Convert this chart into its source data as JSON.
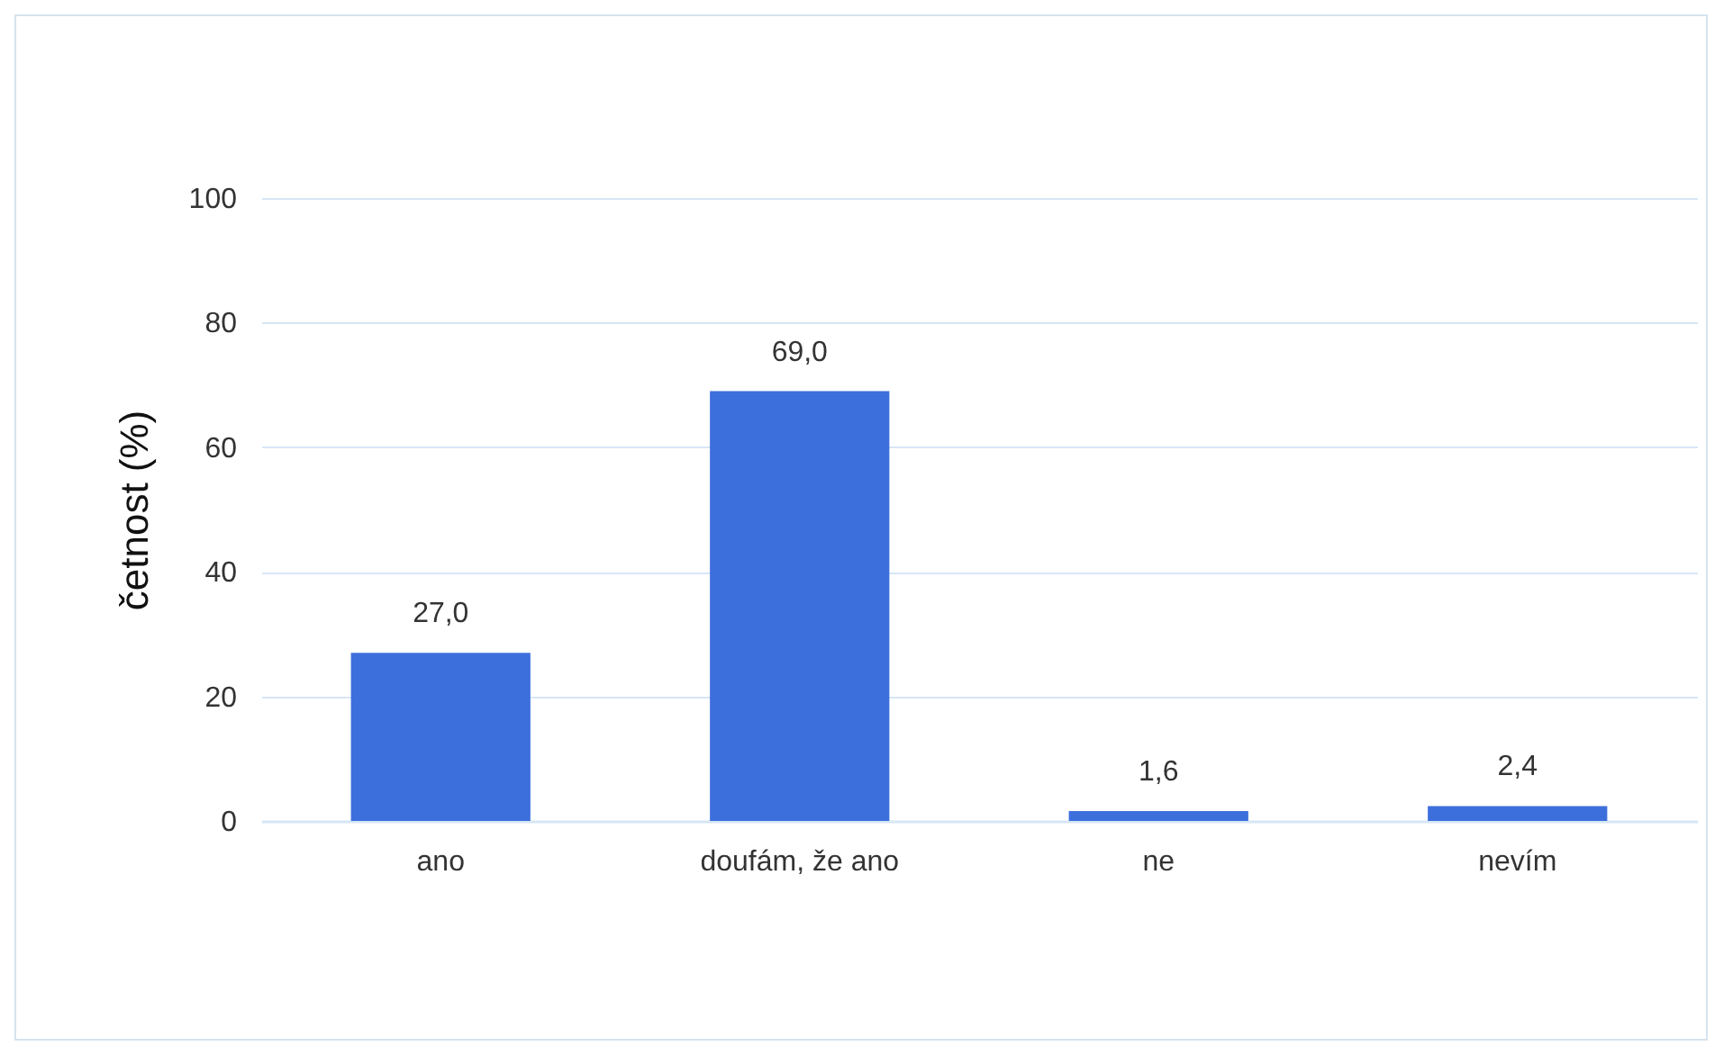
{
  "chart_data": {
    "type": "bar",
    "ylabel": "četnost (%)",
    "categories": [
      "ano",
      "doufám, že ano",
      "ne",
      "nevím"
    ],
    "values": [
      27.0,
      69.0,
      1.6,
      2.4
    ],
    "value_labels": [
      "27,0",
      "69,0",
      "1,6",
      "2,4"
    ],
    "color": "#3d6fdc",
    "ylim": [
      0,
      100
    ],
    "yticks": [
      0,
      20,
      40,
      60,
      80,
      100
    ],
    "grid": "y"
  }
}
